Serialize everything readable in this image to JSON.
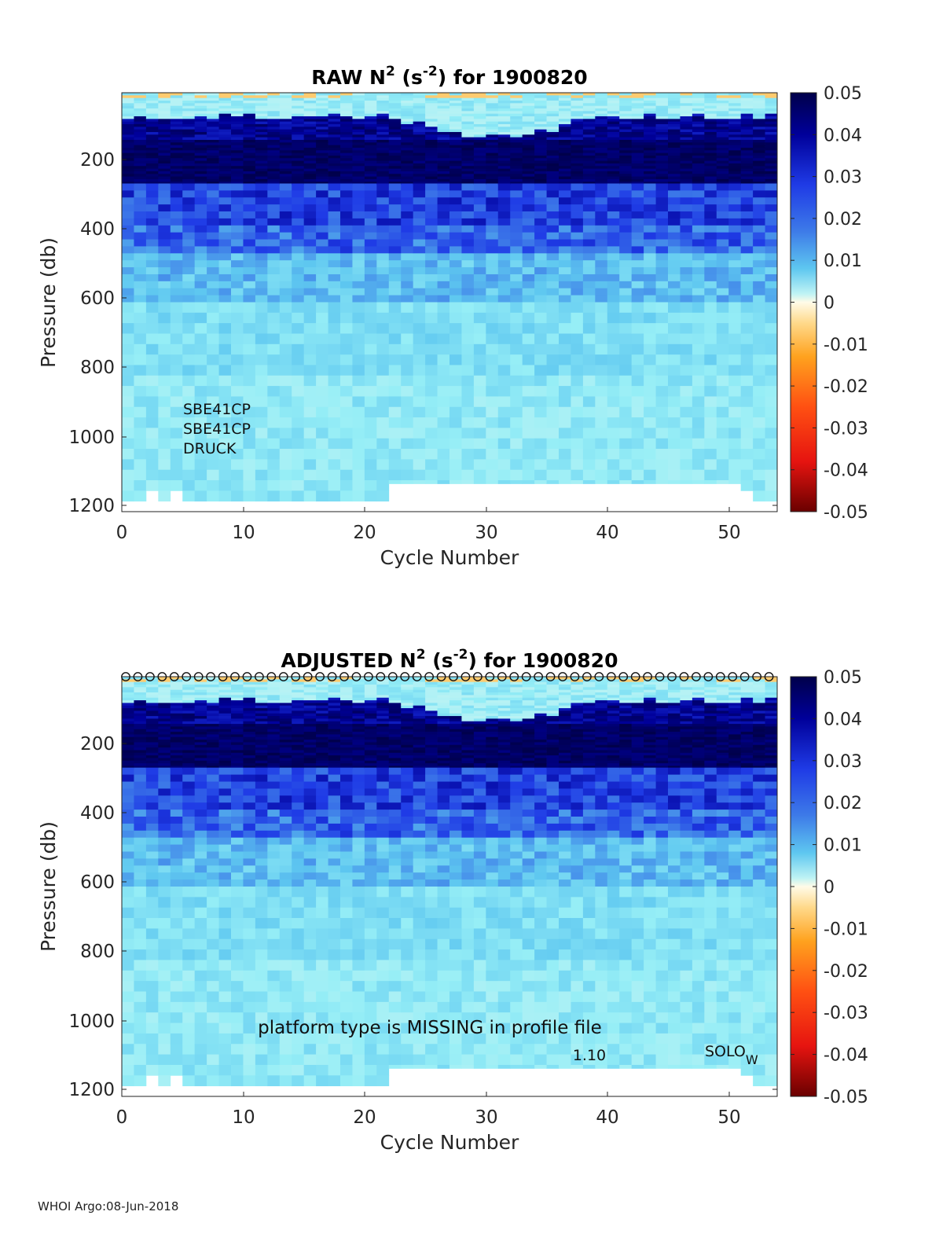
{
  "charts": [
    {
      "id": "raw",
      "title_prefix": "RAW N",
      "title_sup1": "2",
      "title_mid": " (s",
      "title_sup2": "-2",
      "title_suffix": ") for 1900820",
      "xlabel": "Cycle Number",
      "ylabel": "Pressure (db)",
      "xticks": [
        "0",
        "10",
        "20",
        "30",
        "40",
        "50"
      ],
      "yticks": [
        "200",
        "400",
        "600",
        "800",
        "1000",
        "1200"
      ],
      "colorbar_ticks": [
        "0.05",
        "0.04",
        "0.03",
        "0.02",
        "0.01",
        "0",
        "-0.01",
        "-0.02",
        "-0.03",
        "-0.04",
        "-0.05"
      ],
      "annotations": [
        "SBE41CP",
        "SBE41CP",
        "DRUCK"
      ]
    },
    {
      "id": "adjusted",
      "title_prefix": "ADJUSTED N",
      "title_sup1": "2",
      "title_mid": " (s",
      "title_sup2": "-2",
      "title_suffix": ") for 1900820",
      "xlabel": "Cycle Number",
      "ylabel": "Pressure (db)",
      "xticks": [
        "0",
        "10",
        "20",
        "30",
        "40",
        "50"
      ],
      "yticks": [
        "200",
        "400",
        "600",
        "800",
        "1000",
        "1200"
      ],
      "colorbar_ticks": [
        "0.05",
        "0.04",
        "0.03",
        "0.02",
        "0.01",
        "0",
        "-0.01",
        "-0.02",
        "-0.03",
        "-0.04",
        "-0.05"
      ],
      "notes": {
        "platform": "platform type is MISSING in profile file",
        "version": "1.10",
        "float_type": "SOLO",
        "float_sub": "W"
      }
    }
  ],
  "footer": "WHOI Argo:08-Jun-2018",
  "chart_data": [
    {
      "type": "heatmap",
      "title": "RAW N2 (s-2) for 1900820",
      "xlabel": "Cycle Number",
      "ylabel": "Pressure (db)",
      "xlim": [
        0,
        54
      ],
      "ylim": [
        1200,
        0
      ],
      "clim": [
        -0.05,
        0.05
      ],
      "colormap": "blue-cyan-white-orange-red",
      "n_cycles": 54,
      "depth_bands_db": [
        {
          "from": 0,
          "to": 130,
          "typical": 0.035
        },
        {
          "from": 130,
          "to": 260,
          "typical": 0.045
        },
        {
          "from": 260,
          "to": 380,
          "typical": 0.03
        },
        {
          "from": 380,
          "to": 460,
          "typical": 0.024
        },
        {
          "from": 460,
          "to": 600,
          "typical": 0.016
        },
        {
          "from": 600,
          "to": 1200,
          "typical": 0.01
        }
      ],
      "max_depth_db": {
        "cycles_0_22": 1170,
        "cycles_22_51": 1120,
        "cycles_52_54": 1170
      }
    },
    {
      "type": "heatmap",
      "title": "ADJUSTED N2 (s-2) for 1900820",
      "xlabel": "Cycle Number",
      "ylabel": "Pressure (db)",
      "xlim": [
        0,
        54
      ],
      "ylim": [
        1200,
        0
      ],
      "clim": [
        -0.05,
        0.05
      ],
      "colormap": "blue-cyan-white-orange-red",
      "n_cycles": 54,
      "flag_markers": "open circles at top of every cycle",
      "depth_bands_db": [
        {
          "from": 0,
          "to": 130,
          "typical": 0.035
        },
        {
          "from": 130,
          "to": 260,
          "typical": 0.045
        },
        {
          "from": 260,
          "to": 380,
          "typical": 0.03
        },
        {
          "from": 380,
          "to": 460,
          "typical": 0.024
        },
        {
          "from": 460,
          "to": 600,
          "typical": 0.016
        },
        {
          "from": 600,
          "to": 1200,
          "typical": 0.01
        }
      ],
      "max_depth_db": {
        "cycles_0_22": 1170,
        "cycles_22_51": 1120,
        "cycles_52_54": 1170
      }
    }
  ]
}
